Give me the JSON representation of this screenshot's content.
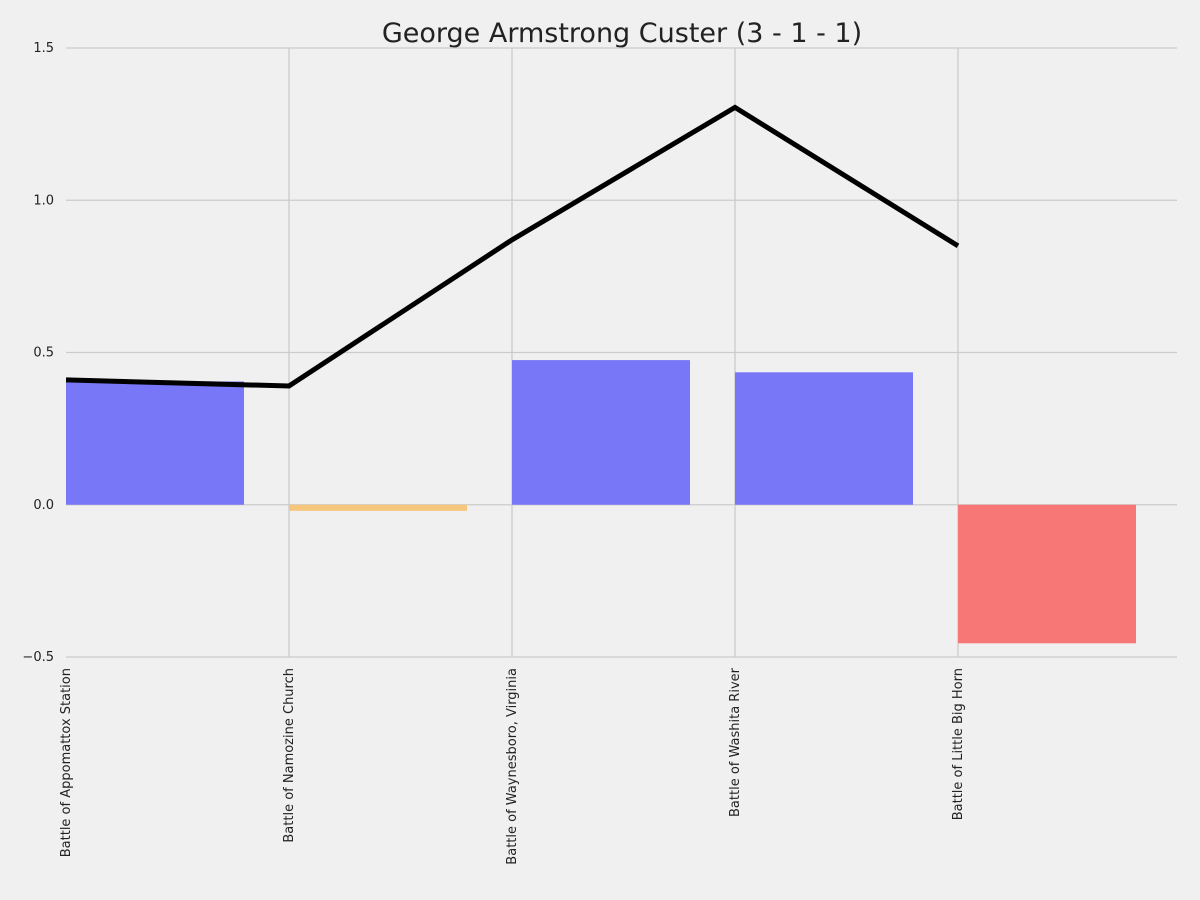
{
  "chart_data": {
    "type": "bar",
    "title": "George Armstrong Custer (3 - 1 - 1)",
    "xlabel": "",
    "ylabel": "",
    "ylim": [
      -0.5,
      1.5
    ],
    "yticks": [
      "−0.5",
      "0.0",
      "0.5",
      "1.0",
      "1.5"
    ],
    "ytick_values": [
      -0.5,
      0.0,
      0.5,
      1.0,
      1.5
    ],
    "grid": true,
    "categories": [
      "Battle of Appomattox Station",
      "Battle of Namozine Church",
      "Battle of Waynesboro, Virginia",
      "Battle of Washita River",
      "Battle of Little Big Horn"
    ],
    "bars": [
      {
        "value": 0.405,
        "outcome_color": "#7777f7"
      },
      {
        "value": -0.02,
        "outcome_color": "#f7c67d"
      },
      {
        "value": 0.475,
        "outcome_color": "#7777f7"
      },
      {
        "value": 0.435,
        "outcome_color": "#7777f7"
      },
      {
        "value": -0.455,
        "outcome_color": "#f77777"
      }
    ],
    "line": {
      "values": [
        0.41,
        0.39,
        0.87,
        1.305,
        0.85
      ],
      "color": "#000000"
    },
    "colors": {
      "background": "#f0f0f0",
      "grid": "#cbcbcb",
      "win": "#7777f7",
      "draw": "#f7c67d",
      "loss": "#f77777",
      "line": "#000000"
    }
  }
}
